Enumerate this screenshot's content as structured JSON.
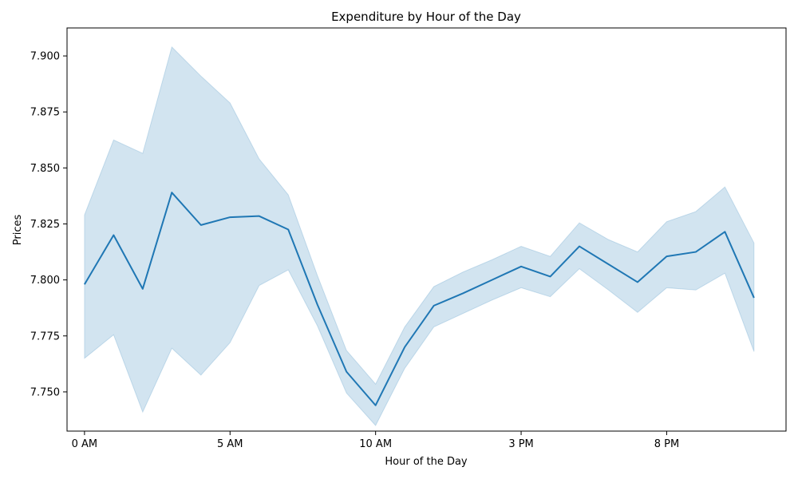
{
  "chart_data": {
    "type": "line",
    "title": "Expenditure by Hour of the Day",
    "xlabel": "Hour of the Day",
    "ylabel": "Prices",
    "xlim": [
      -0.6,
      24.1
    ],
    "ylim": [
      7.7325,
      7.9125
    ],
    "x_ticks": [
      {
        "value": 0,
        "label": "0 AM"
      },
      {
        "value": 5,
        "label": "5 AM"
      },
      {
        "value": 10,
        "label": "10 AM"
      },
      {
        "value": 15,
        "label": "3 PM"
      },
      {
        "value": 20,
        "label": "8 PM"
      }
    ],
    "y_ticks": [
      {
        "value": 7.75,
        "label": "7.750"
      },
      {
        "value": 7.775,
        "label": "7.775"
      },
      {
        "value": 7.8,
        "label": "7.800"
      },
      {
        "value": 7.825,
        "label": "7.825"
      },
      {
        "value": 7.85,
        "label": "7.850"
      },
      {
        "value": 7.875,
        "label": "7.875"
      },
      {
        "value": 7.9,
        "label": "7.900"
      }
    ],
    "grid": false,
    "legend": "none",
    "colors": {
      "line": "#1f77b4",
      "band": "#1f77b4"
    },
    "series": [
      {
        "x": [
          0,
          1,
          2,
          3,
          4,
          5,
          6,
          7,
          8,
          9,
          10,
          11,
          12,
          13,
          14,
          15,
          16,
          17,
          18,
          19,
          20,
          21,
          22,
          23
        ],
        "y": [
          7.798,
          7.82,
          7.796,
          7.839,
          7.8245,
          7.828,
          7.8285,
          7.8225,
          7.789,
          7.759,
          7.744,
          7.77,
          7.7885,
          7.794,
          7.8,
          7.806,
          7.8015,
          7.815,
          7.807,
          7.799,
          7.8105,
          7.8125,
          7.8215,
          7.792
        ],
        "lower": [
          7.765,
          7.7755,
          7.741,
          7.7695,
          7.7575,
          7.772,
          7.7975,
          7.8045,
          7.7795,
          7.7495,
          7.735,
          7.7605,
          7.779,
          7.785,
          7.791,
          7.7965,
          7.7925,
          7.805,
          7.7955,
          7.7855,
          7.7965,
          7.7955,
          7.803,
          7.768
        ],
        "upper": [
          7.829,
          7.8625,
          7.8565,
          7.904,
          7.891,
          7.879,
          7.854,
          7.838,
          7.802,
          7.7685,
          7.7535,
          7.779,
          7.797,
          7.8035,
          7.809,
          7.815,
          7.8105,
          7.8255,
          7.818,
          7.8125,
          7.826,
          7.8305,
          7.8415,
          7.8165
        ]
      }
    ]
  }
}
